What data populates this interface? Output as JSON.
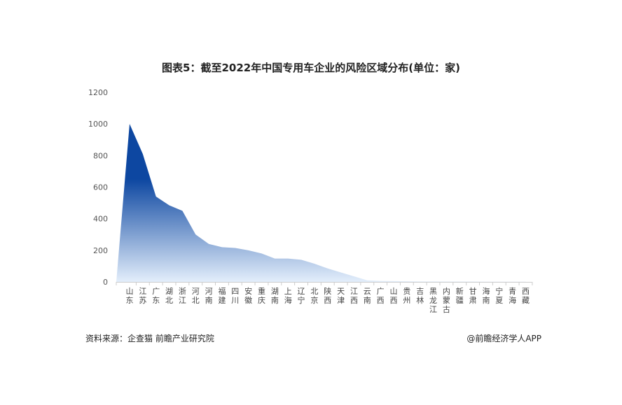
{
  "chart_data": {
    "type": "area",
    "title": "图表5：截至2022年中国专用车企业的风险区域分布(单位：家)",
    "xlabel": "",
    "ylabel": "",
    "ylim": [
      0,
      1200
    ],
    "yticks": [
      0,
      200,
      400,
      600,
      800,
      1000,
      1200
    ],
    "grid": false,
    "categories": [
      "山东",
      "江苏",
      "广东",
      "湖北",
      "浙江",
      "河北",
      "河南",
      "福建",
      "四川",
      "安徽",
      "重庆",
      "湖南",
      "上海",
      "辽宁",
      "北京",
      "陕西",
      "天津",
      "江西",
      "云南",
      "广西",
      "山西",
      "贵州",
      "吉林",
      "黑龙江",
      "内蒙古",
      "新疆",
      "甘肃",
      "海南",
      "宁夏",
      "青海",
      "西藏"
    ],
    "values": [
      1000,
      810,
      540,
      485,
      450,
      300,
      240,
      220,
      215,
      200,
      180,
      148,
      148,
      140,
      115,
      85,
      60,
      35,
      10,
      6,
      5,
      4,
      3,
      3,
      2,
      2,
      2,
      1,
      1,
      1,
      1
    ],
    "colors": {
      "top": "#0d47a1",
      "bottom": "#e3eefb"
    }
  },
  "footer": {
    "source": "资料来源：企查猫 前瞻产业研究院",
    "brand": "@前瞻经济学人APP"
  }
}
